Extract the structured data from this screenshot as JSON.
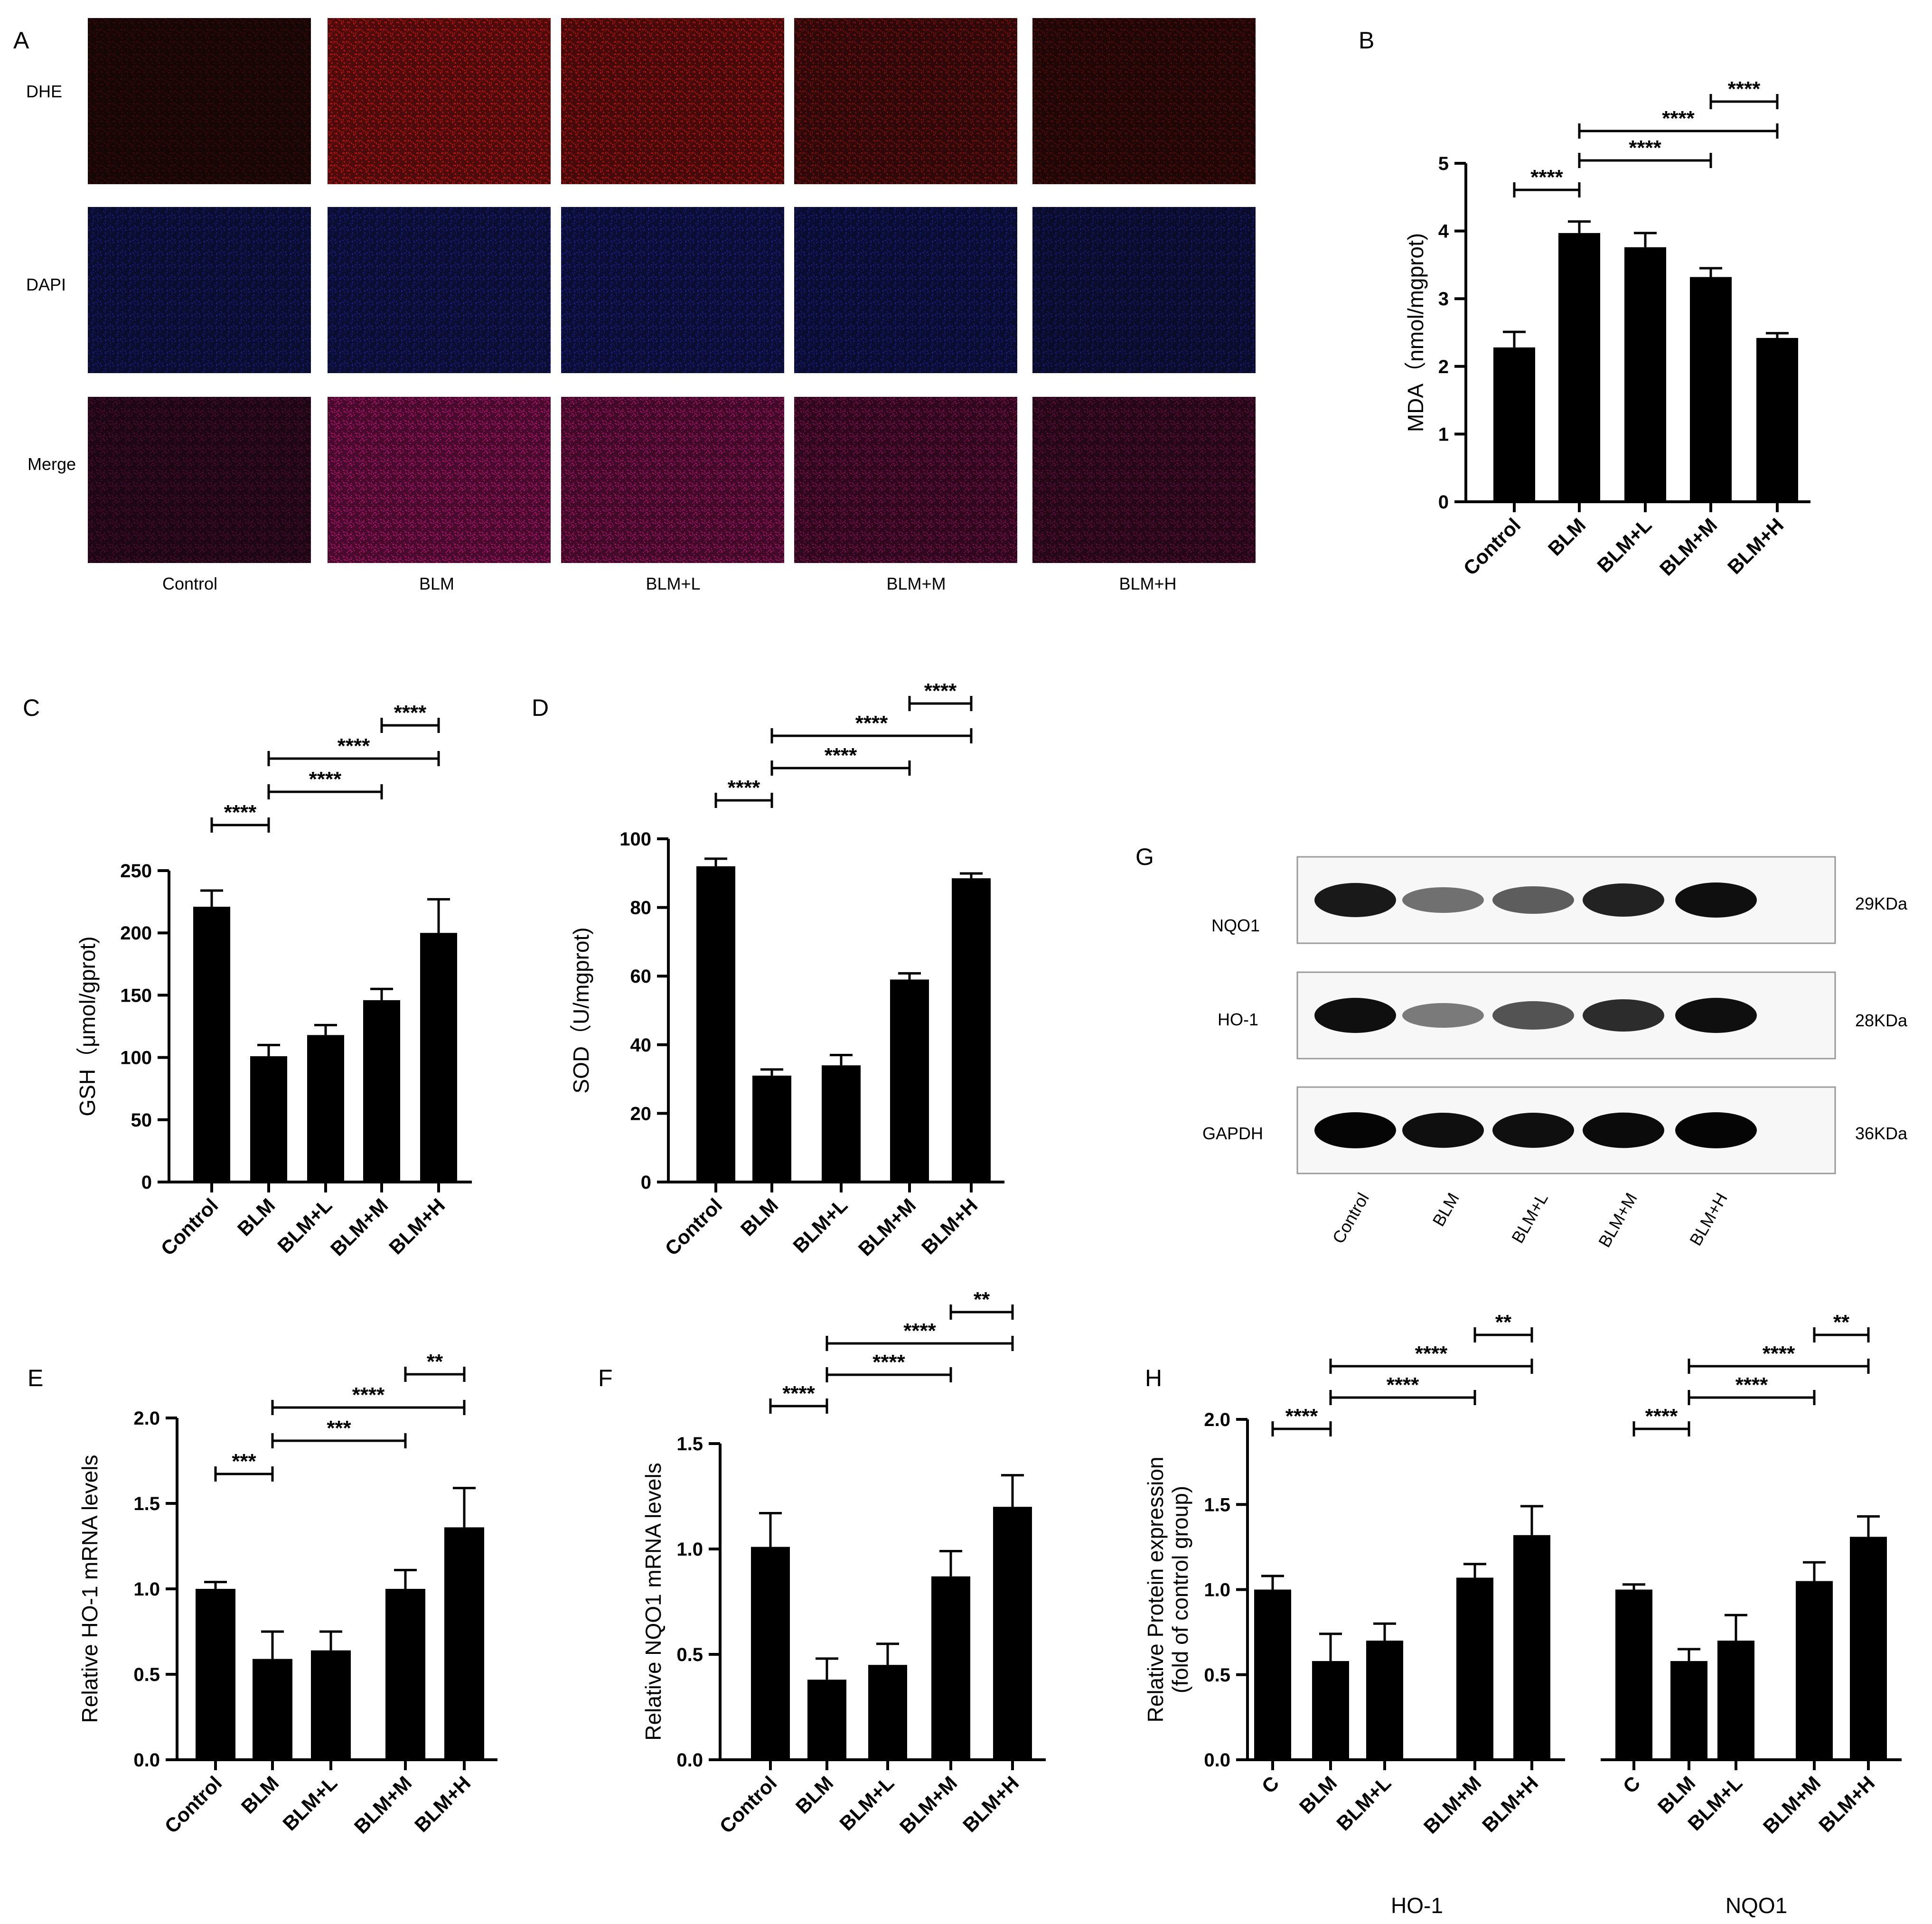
{
  "panel_labels": [
    "A",
    "B",
    "C",
    "D",
    "E",
    "F",
    "G",
    "H"
  ],
  "panel_a": {
    "rows": [
      "DHE",
      "DAPI",
      "Merge"
    ],
    "cols": [
      "Control",
      "BLM",
      "BLM+L",
      "BLM+M",
      "BLM+H"
    ],
    "brightness": [
      [
        0.22,
        0.95,
        0.85,
        0.55,
        0.35
      ],
      [
        0.55,
        0.6,
        0.62,
        0.58,
        0.5
      ],
      [
        0.35,
        0.95,
        0.85,
        0.6,
        0.45
      ]
    ],
    "colors": {
      "DHE": "#e01818",
      "DAPI": "#2430d8",
      "Merge": "#d01880"
    }
  },
  "western": {
    "bands": [
      "NQO1",
      "HO-1",
      "GAPDH"
    ],
    "sizes": [
      "29KDa",
      "28KDa",
      "36KDa"
    ],
    "lanes": [
      "Control",
      "BLM",
      "BLM+L",
      "BLM+M",
      "BLM+H"
    ],
    "intensity": [
      [
        0.9,
        0.45,
        0.55,
        0.85,
        0.95
      ],
      [
        0.95,
        0.4,
        0.6,
        0.8,
        0.95
      ],
      [
        1.0,
        0.95,
        0.95,
        0.97,
        1.0
      ]
    ]
  },
  "chart_data": [
    {
      "panel": "B",
      "type": "bar",
      "categories": [
        "Control",
        "BLM",
        "BLM+L",
        "BLM+M",
        "BLM+H"
      ],
      "values": [
        2.28,
        3.97,
        3.76,
        3.32,
        2.42
      ],
      "errors": [
        0.23,
        0.17,
        0.21,
        0.13,
        0.07
      ],
      "ylabel": "MDA（nmol/mgprot)",
      "ylim": [
        0,
        5
      ],
      "yticks": [
        0,
        1,
        2,
        3,
        4,
        5
      ],
      "tick_format": "0",
      "significance": [
        {
          "from": 0,
          "to": 1,
          "label": "****"
        },
        {
          "from": 1,
          "to": 3,
          "label": "****"
        },
        {
          "from": 1,
          "to": 4,
          "label": "****"
        },
        {
          "from": 3,
          "to": 4,
          "label": "****"
        }
      ]
    },
    {
      "panel": "C",
      "type": "bar",
      "categories": [
        "Control",
        "BLM",
        "BLM+L",
        "BLM+M",
        "BLM+H"
      ],
      "values": [
        221,
        101,
        118,
        146,
        200
      ],
      "errors": [
        13,
        9,
        8,
        9,
        27
      ],
      "ylabel": "GSH（μmol/gprot)",
      "ylim": [
        0,
        250
      ],
      "yticks": [
        0,
        50,
        100,
        150,
        200,
        250
      ],
      "tick_format": "0",
      "significance": [
        {
          "from": 0,
          "to": 1,
          "label": "****"
        },
        {
          "from": 1,
          "to": 3,
          "label": "****"
        },
        {
          "from": 1,
          "to": 4,
          "label": "****"
        },
        {
          "from": 3,
          "to": 4,
          "label": "****"
        }
      ]
    },
    {
      "panel": "D",
      "type": "bar",
      "categories": [
        "Control",
        "BLM",
        "BLM+L",
        "BLM+M",
        "BLM+H"
      ],
      "values": [
        92,
        31,
        34,
        59,
        88.5
      ],
      "errors": [
        2.2,
        1.8,
        3.0,
        1.8,
        1.4
      ],
      "ylabel": "SOD（U/mgprot)",
      "ylim": [
        0,
        100
      ],
      "yticks": [
        0,
        20,
        40,
        60,
        80,
        100
      ],
      "tick_format": "0",
      "significance": [
        {
          "from": 0,
          "to": 1,
          "label": "****"
        },
        {
          "from": 1,
          "to": 3,
          "label": "****"
        },
        {
          "from": 1,
          "to": 4,
          "label": "****"
        },
        {
          "from": 3,
          "to": 4,
          "label": "****"
        }
      ]
    },
    {
      "panel": "E",
      "type": "bar",
      "categories": [
        "Control",
        "BLM",
        "BLM+L",
        "BLM+M",
        "BLM+H"
      ],
      "values": [
        1.0,
        0.59,
        0.64,
        1.0,
        1.36
      ],
      "errors": [
        0.04,
        0.16,
        0.11,
        0.11,
        0.23
      ],
      "ylabel": "Relative HO-1 mRNA levels",
      "ylim": [
        0,
        2.0
      ],
      "yticks": [
        0,
        0.5,
        1.0,
        1.5,
        2.0
      ],
      "tick_format": "0.0",
      "significance": [
        {
          "from": 0,
          "to": 1,
          "label": "***"
        },
        {
          "from": 1,
          "to": 3,
          "label": "***"
        },
        {
          "from": 1,
          "to": 4,
          "label": "****"
        },
        {
          "from": 3,
          "to": 4,
          "label": "**"
        }
      ]
    },
    {
      "panel": "F",
      "type": "bar",
      "categories": [
        "Control",
        "BLM",
        "BLM+L",
        "BLM+M",
        "BLM+H"
      ],
      "values": [
        1.01,
        0.38,
        0.45,
        0.87,
        1.2
      ],
      "errors": [
        0.16,
        0.1,
        0.1,
        0.12,
        0.15
      ],
      "ylabel": "Relative NQO1 mRNA levels",
      "ylim": [
        0,
        1.5
      ],
      "yticks": [
        0,
        0.5,
        1.0,
        1.5
      ],
      "tick_format": "0.0",
      "significance": [
        {
          "from": 0,
          "to": 1,
          "label": "****"
        },
        {
          "from": 1,
          "to": 3,
          "label": "****"
        },
        {
          "from": 1,
          "to": 4,
          "label": "****"
        },
        {
          "from": 3,
          "to": 4,
          "label": "**"
        }
      ]
    },
    {
      "panel": "H",
      "type": "bar",
      "groups": [
        "HO-1",
        "NQO1"
      ],
      "categories": [
        "C",
        "BLM",
        "BLM+L",
        "BLM+M",
        "BLM+H",
        "C",
        "BLM",
        "BLM+L",
        "BLM+M",
        "BLM+H"
      ],
      "values": [
        1.0,
        0.58,
        0.7,
        1.07,
        1.32,
        1.0,
        0.58,
        0.7,
        1.05,
        1.31
      ],
      "errors": [
        0.08,
        0.16,
        0.1,
        0.08,
        0.17,
        0.03,
        0.07,
        0.15,
        0.11,
        0.12
      ],
      "ylabel": "Relative Protein expression",
      "ylabel2": "(fold of control group)",
      "ylim": [
        0,
        2.0
      ],
      "yticks": [
        0,
        0.5,
        1.0,
        1.5,
        2.0
      ],
      "tick_format": "0.0",
      "significance": [
        {
          "from": 0,
          "to": 1,
          "label": "****"
        },
        {
          "from": 1,
          "to": 3,
          "label": "****"
        },
        {
          "from": 1,
          "to": 4,
          "label": "****"
        },
        {
          "from": 3,
          "to": 4,
          "label": "**"
        },
        {
          "from": 5,
          "to": 6,
          "label": "****"
        },
        {
          "from": 6,
          "to": 8,
          "label": "****"
        },
        {
          "from": 6,
          "to": 9,
          "label": "****"
        },
        {
          "from": 8,
          "to": 9,
          "label": "**"
        }
      ]
    }
  ]
}
